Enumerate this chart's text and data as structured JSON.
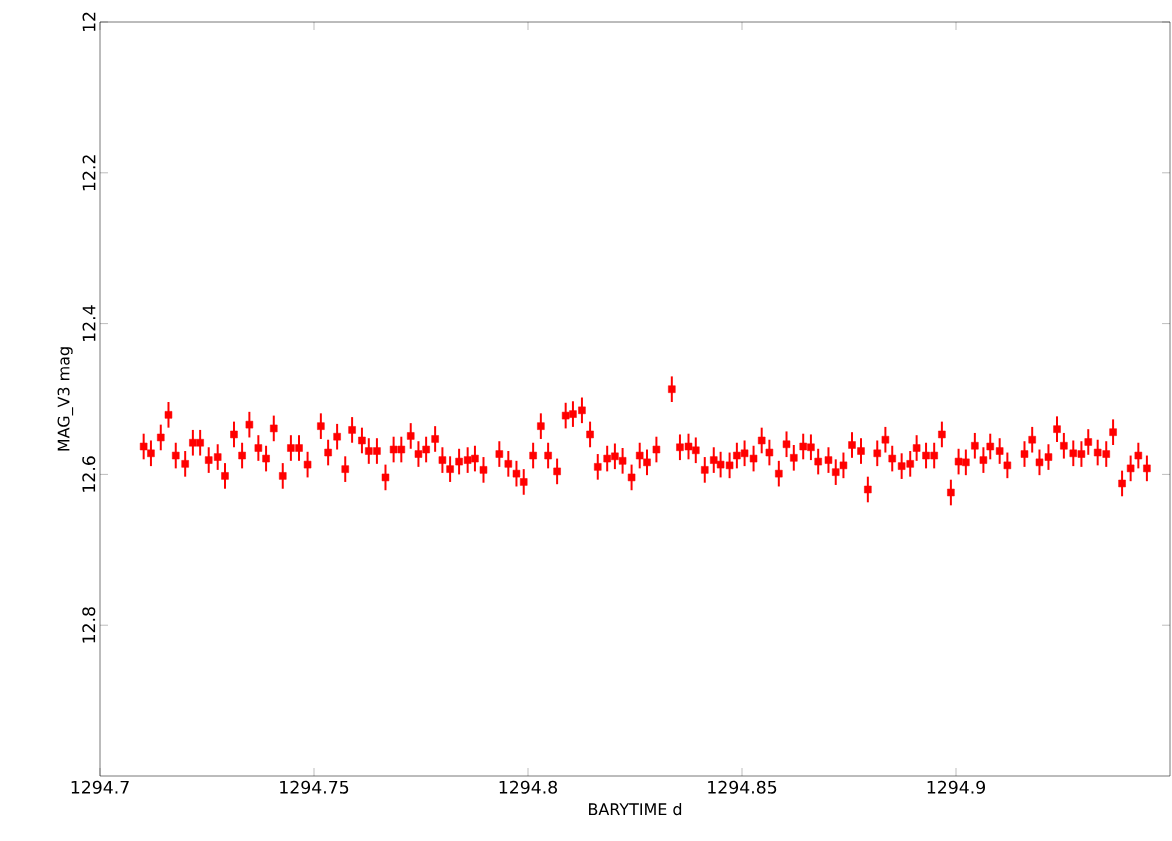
{
  "chart_data": {
    "type": "scatter",
    "xlabel": "BARYTIME   d",
    "ylabel": "MAG_V3   mag",
    "color": "#ff0000",
    "marker": "square",
    "xlim": [
      1294.7,
      1294.95
    ],
    "ylim": [
      13,
      12
    ],
    "xticks": [
      1294.7,
      1294.75,
      1294.8,
      1294.85,
      1294.9
    ],
    "yticks": [
      12,
      12.2,
      12.4,
      12.6,
      12.8
    ],
    "x": [
      1294.7102,
      1294.7119,
      1294.7142,
      1294.716,
      1294.7177,
      1294.7199,
      1294.7217,
      1294.7234,
      1294.7254,
      1294.7275,
      1294.7292,
      1294.7313,
      1294.7332,
      1294.7349,
      1294.737,
      1294.7388,
      1294.7406,
      1294.7427,
      1294.7446,
      1294.7465,
      1294.7485,
      1294.7516,
      1294.7533,
      1294.7554,
      1294.7573,
      1294.7589,
      1294.7612,
      1294.7628,
      1294.7647,
      1294.7667,
      1294.7686,
      1294.7704,
      1294.7726,
      1294.7744,
      1294.7762,
      1294.7783,
      1294.78,
      1294.7818,
      1294.7839,
      1294.7859,
      1294.7876,
      1294.7896,
      1294.7933,
      1294.7954,
      1294.7973,
      1294.799,
      1294.8012,
      1294.803,
      1294.8047,
      1294.8068,
      1294.8088,
      1294.8105,
      1294.8126,
      1294.8145,
      1294.8163,
      1294.8185,
      1294.8203,
      1294.8221,
      1294.8242,
      1294.8261,
      1294.8278,
      1294.83,
      1294.8336,
      1294.8355,
      1294.8375,
      1294.8392,
      1294.8413,
      1294.8434,
      1294.845,
      1294.8471,
      1294.8488,
      1294.8506,
      1294.8527,
      1294.8546,
      1294.8564,
      1294.8586,
      1294.8604,
      1294.8621,
      1294.8643,
      1294.8661,
      1294.8678,
      1294.8702,
      1294.8719,
      1294.8737,
      1294.8757,
      1294.8778,
      1294.8794,
      1294.8816,
      1294.8835,
      1294.8851,
      1294.8873,
      1294.8893,
      1294.8908,
      1294.893,
      1294.8949,
      1294.8967,
      1294.8988,
      1294.9006,
      1294.9023,
      1294.9044,
      1294.9064,
      1294.908,
      1294.9102,
      1294.912,
      1294.916,
      1294.9178,
      1294.9195,
      1294.9216,
      1294.9236,
      1294.9252,
      1294.9274,
      1294.9293,
      1294.9309,
      1294.9331,
      1294.9351,
      1294.9367,
      1294.9388,
      1294.9408,
      1294.9426,
      1294.9446
    ],
    "values": [
      12.563,
      12.572,
      12.551,
      12.521,
      12.575,
      12.586,
      12.558,
      12.558,
      12.581,
      12.577,
      12.602,
      12.547,
      12.575,
      12.534,
      12.565,
      12.579,
      12.539,
      12.602,
      12.565,
      12.565,
      12.587,
      12.536,
      12.571,
      12.55,
      12.593,
      12.541,
      12.555,
      12.569,
      12.569,
      12.604,
      12.567,
      12.567,
      12.549,
      12.573,
      12.567,
      12.553,
      12.581,
      12.593,
      12.583,
      12.581,
      12.579,
      12.594,
      12.573,
      12.586,
      12.599,
      12.61,
      12.575,
      12.536,
      12.575,
      12.596,
      12.522,
      12.52,
      12.515,
      12.547,
      12.59,
      12.579,
      12.576,
      12.582,
      12.604,
      12.575,
      12.584,
      12.567,
      12.487,
      12.564,
      12.563,
      12.568,
      12.594,
      12.581,
      12.587,
      12.588,
      12.575,
      12.572,
      12.579,
      12.555,
      12.571,
      12.599,
      12.56,
      12.578,
      12.563,
      12.564,
      12.583,
      12.581,
      12.597,
      12.588,
      12.561,
      12.569,
      12.62,
      12.572,
      12.554,
      12.579,
      12.589,
      12.586,
      12.565,
      12.575,
      12.575,
      12.547,
      12.624,
      12.583,
      12.584,
      12.562,
      12.581,
      12.563,
      12.569,
      12.588,
      12.573,
      12.554,
      12.584,
      12.577,
      12.54,
      12.562,
      12.572,
      12.573,
      12.557,
      12.571,
      12.573,
      12.544,
      12.612,
      12.592,
      12.575,
      12.592
    ],
    "errors": [
      0.017,
      0.017,
      0.017,
      0.017,
      0.017,
      0.017,
      0.017,
      0.017,
      0.017,
      0.017,
      0.017,
      0.017,
      0.017,
      0.017,
      0.017,
      0.017,
      0.017,
      0.017,
      0.017,
      0.017,
      0.017,
      0.017,
      0.017,
      0.017,
      0.017,
      0.017,
      0.017,
      0.017,
      0.017,
      0.017,
      0.017,
      0.017,
      0.017,
      0.017,
      0.017,
      0.017,
      0.017,
      0.017,
      0.017,
      0.017,
      0.017,
      0.017,
      0.017,
      0.017,
      0.017,
      0.017,
      0.017,
      0.017,
      0.017,
      0.017,
      0.017,
      0.017,
      0.017,
      0.017,
      0.017,
      0.017,
      0.017,
      0.017,
      0.017,
      0.017,
      0.017,
      0.017,
      0.017,
      0.017,
      0.017,
      0.017,
      0.017,
      0.017,
      0.017,
      0.017,
      0.017,
      0.017,
      0.017,
      0.017,
      0.017,
      0.017,
      0.017,
      0.017,
      0.017,
      0.017,
      0.017,
      0.017,
      0.017,
      0.017,
      0.017,
      0.017,
      0.017,
      0.017,
      0.017,
      0.017,
      0.017,
      0.017,
      0.017,
      0.017,
      0.017,
      0.017,
      0.017,
      0.017,
      0.017,
      0.017,
      0.017,
      0.017,
      0.017,
      0.017,
      0.017,
      0.017,
      0.017,
      0.017,
      0.017,
      0.017,
      0.017,
      0.017,
      0.017,
      0.017,
      0.017,
      0.017,
      0.017,
      0.017,
      0.017,
      0.017
    ]
  }
}
